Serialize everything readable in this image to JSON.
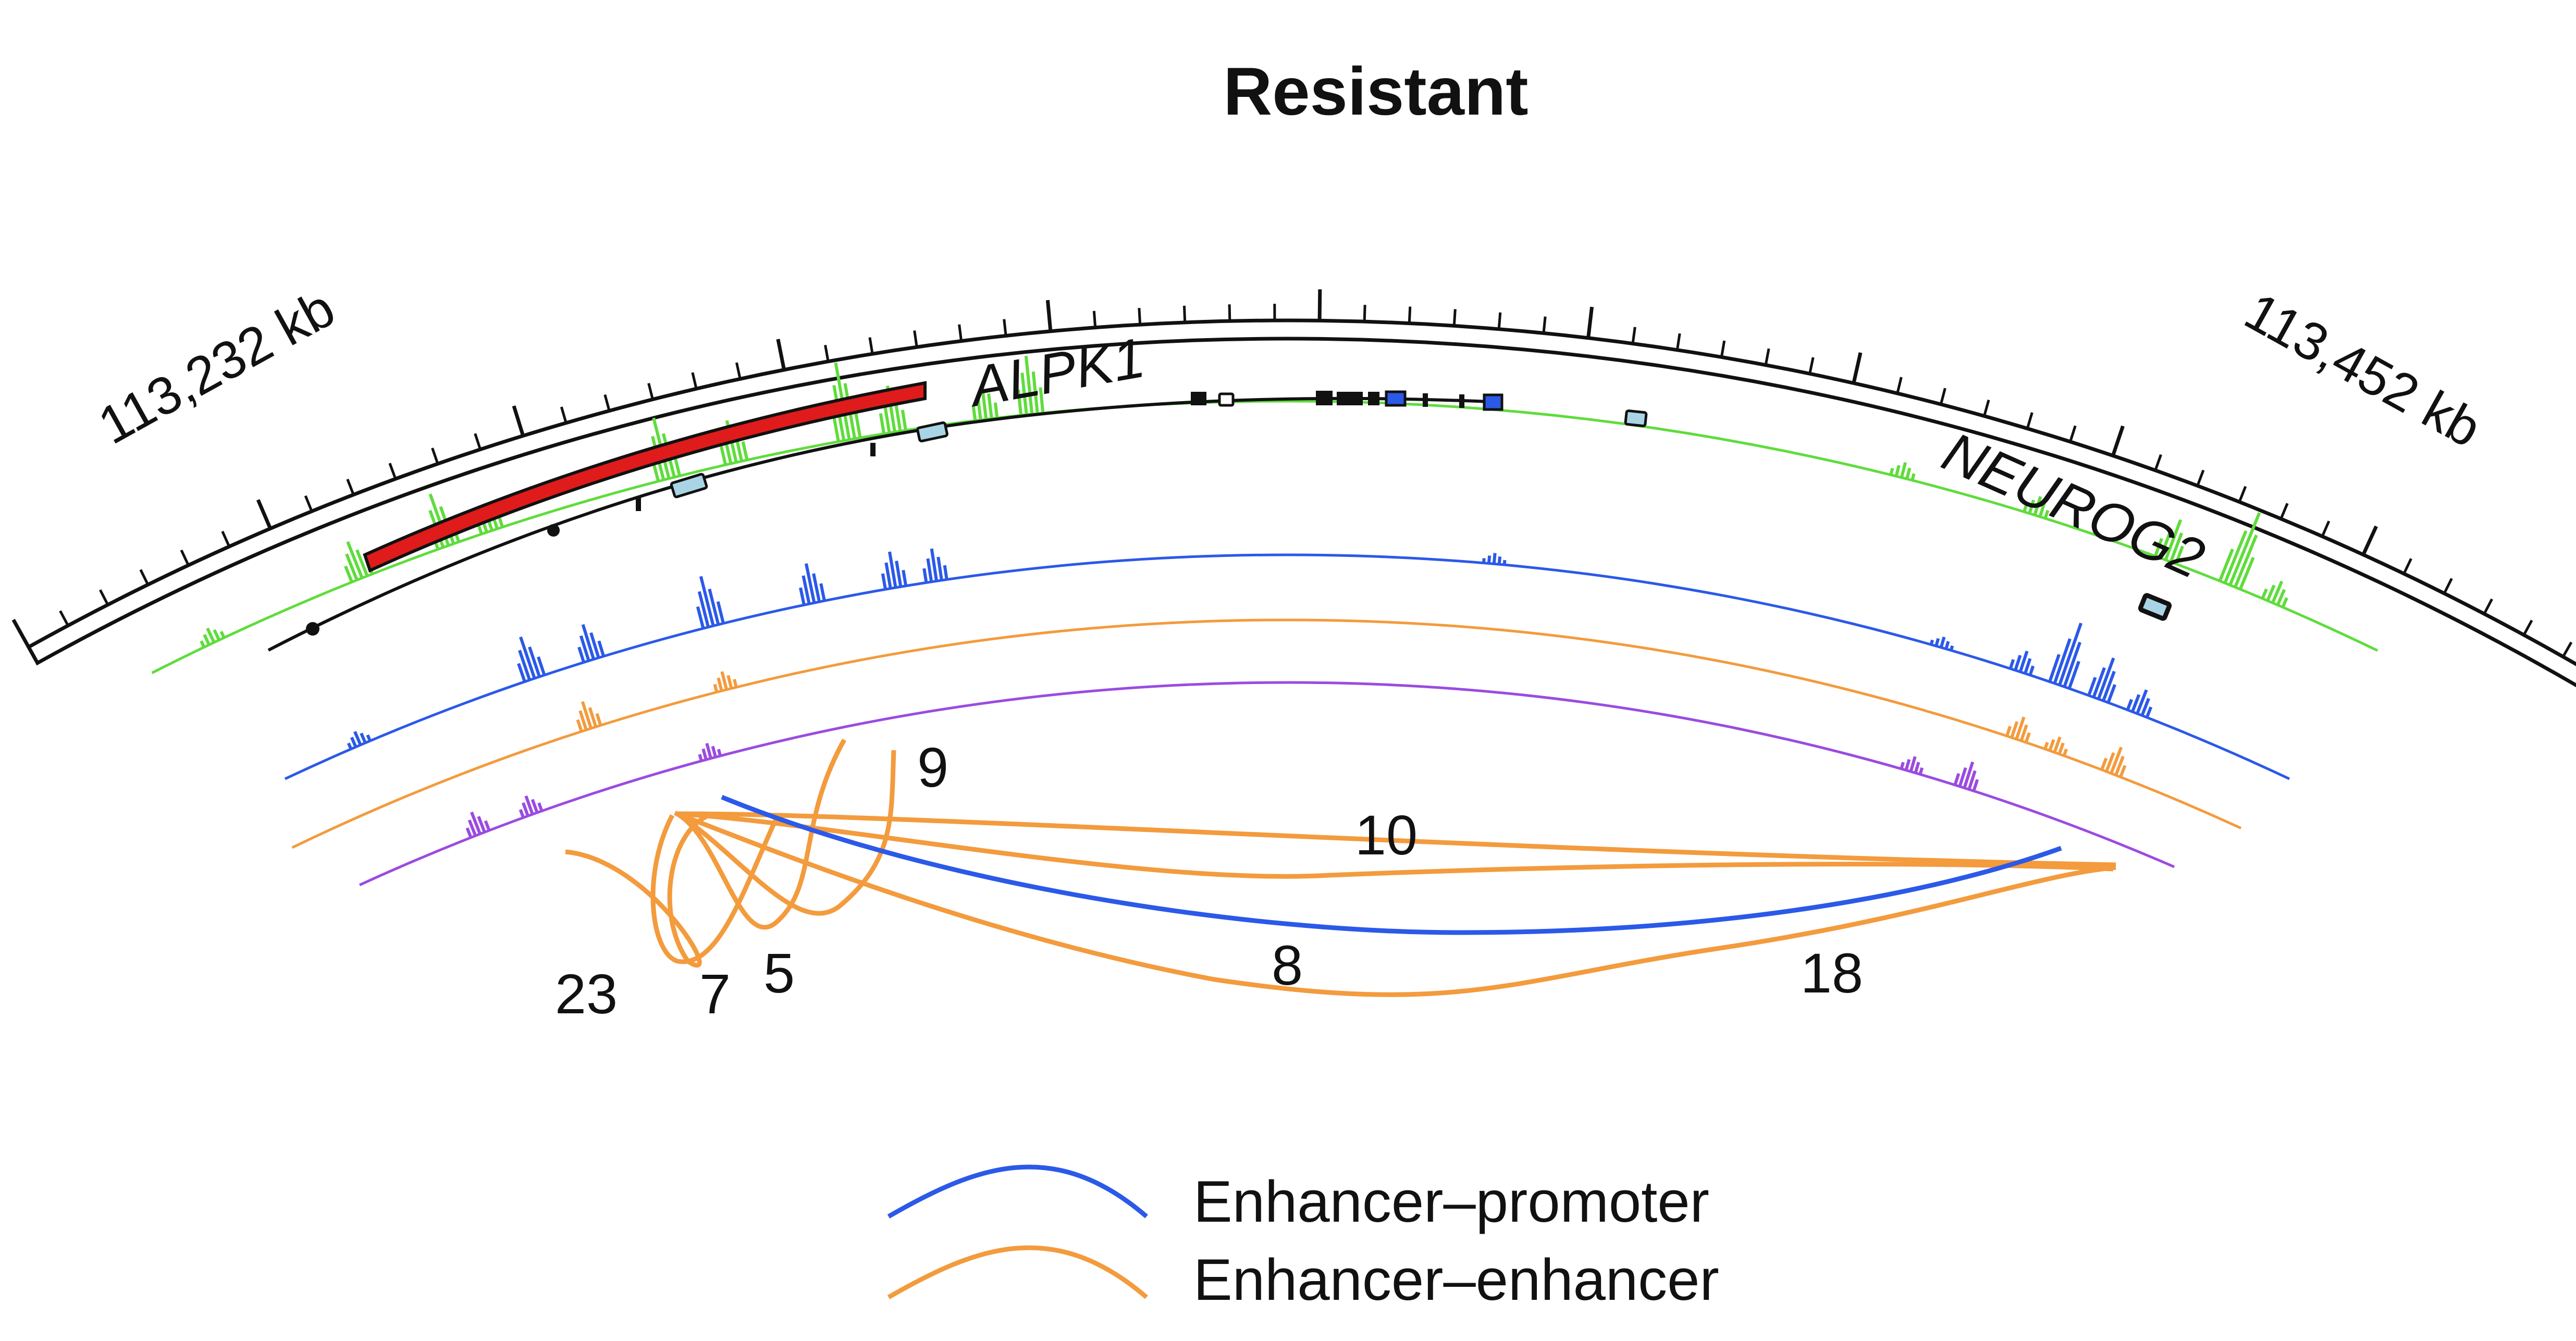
{
  "title": "Resistant",
  "axis": {
    "start_label": "113,232 kb",
    "end_label": "113,452 kb"
  },
  "genes": [
    {
      "name": "ALPK1",
      "highlight_color": "#e01b1b"
    },
    {
      "name": "NEUROG2"
    }
  ],
  "tracks": [
    {
      "id": "track-green",
      "color": "#5fdc3c",
      "peaks": [
        [
          0.03,
          0.2
        ],
        [
          0.1,
          0.5
        ],
        [
          0.14,
          0.7
        ],
        [
          0.16,
          0.35
        ],
        [
          0.24,
          0.8
        ],
        [
          0.27,
          0.55
        ],
        [
          0.32,
          1.0
        ],
        [
          0.34,
          0.6
        ],
        [
          0.38,
          0.45
        ],
        [
          0.4,
          0.75
        ],
        [
          0.78,
          0.2
        ],
        [
          0.84,
          0.25
        ],
        [
          0.9,
          0.55
        ],
        [
          0.93,
          1.0
        ],
        [
          0.95,
          0.3
        ]
      ]
    },
    {
      "id": "track-blue",
      "color": "#2b59e8",
      "peaks": [
        [
          0.04,
          0.2
        ],
        [
          0.13,
          0.6
        ],
        [
          0.16,
          0.5
        ],
        [
          0.22,
          0.7
        ],
        [
          0.27,
          0.55
        ],
        [
          0.31,
          0.5
        ],
        [
          0.33,
          0.45
        ],
        [
          0.6,
          0.15
        ],
        [
          0.82,
          0.15
        ],
        [
          0.86,
          0.3
        ],
        [
          0.88,
          0.9
        ],
        [
          0.9,
          0.6
        ],
        [
          0.92,
          0.35
        ]
      ]
    },
    {
      "id": "track-orange",
      "color": "#f39b3d",
      "peaks": [
        [
          0.16,
          0.6
        ],
        [
          0.23,
          0.4
        ],
        [
          0.88,
          0.5
        ],
        [
          0.9,
          0.35
        ],
        [
          0.93,
          0.6
        ]
      ]
    },
    {
      "id": "track-purple",
      "color": "#9b4be0",
      "peaks": [
        [
          0.07,
          0.6
        ],
        [
          0.1,
          0.5
        ],
        [
          0.2,
          0.4
        ],
        [
          0.85,
          0.4
        ],
        [
          0.88,
          0.7
        ]
      ]
    }
  ],
  "arcs": [
    {
      "type": "Enhancer-enhancer",
      "label": "23"
    },
    {
      "type": "Enhancer-enhancer",
      "label": "7"
    },
    {
      "type": "Enhancer-enhancer",
      "label": "5"
    },
    {
      "type": "Enhancer-enhancer",
      "label": "9"
    },
    {
      "type": "Enhancer-enhancer",
      "label": "10"
    },
    {
      "type": "Enhancer-enhancer",
      "label": "8"
    },
    {
      "type": "Enhancer-enhancer",
      "label": "18"
    },
    {
      "type": "Enhancer-promoter",
      "label": ""
    }
  ],
  "legend": [
    {
      "label": "Enhancer–promoter",
      "color": "#2b59e8"
    },
    {
      "label": "Enhancer–enhancer",
      "color": "#f39b3d"
    }
  ],
  "colors": {
    "enhancer_promoter": "#2b59e8",
    "enhancer_enhancer": "#f39b3d",
    "exon_fill": "#a9d4e6",
    "axis": "#111111"
  }
}
